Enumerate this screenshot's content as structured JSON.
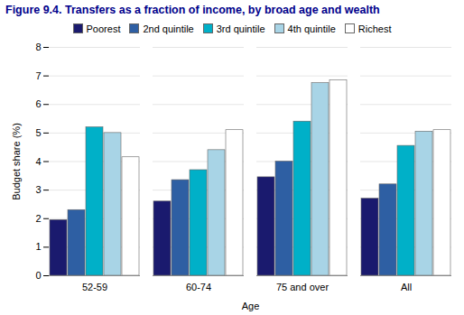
{
  "chart_data": {
    "type": "bar",
    "title": "Figure 9.4. Transfers as a fraction of income, by broad age and wealth",
    "categories": [
      "52-59",
      "60-74",
      "75 and over",
      "All"
    ],
    "series": [
      {
        "name": "Poorest",
        "color": "#1a1a6e",
        "values": [
          1.95,
          2.6,
          3.45,
          2.7
        ]
      },
      {
        "name": "2nd quintile",
        "color": "#2e5fa3",
        "values": [
          2.3,
          3.35,
          4.0,
          3.2
        ]
      },
      {
        "name": "3rd quintile",
        "color": "#00b0c8",
        "values": [
          5.2,
          3.7,
          5.4,
          4.55
        ]
      },
      {
        "name": "4th quintile",
        "color": "#a8d4e6",
        "values": [
          5.0,
          4.4,
          6.75,
          5.05
        ]
      },
      {
        "name": "Richest",
        "color": "#ffffff",
        "values": [
          4.15,
          5.1,
          6.85,
          5.1
        ]
      }
    ],
    "xlabel": "Age",
    "ylabel": "Budget share (%)",
    "ylim": [
      0,
      8
    ],
    "yticks": [
      0,
      1,
      2,
      3,
      4,
      5,
      6,
      7,
      8
    ],
    "grid": true,
    "legend": "top"
  }
}
